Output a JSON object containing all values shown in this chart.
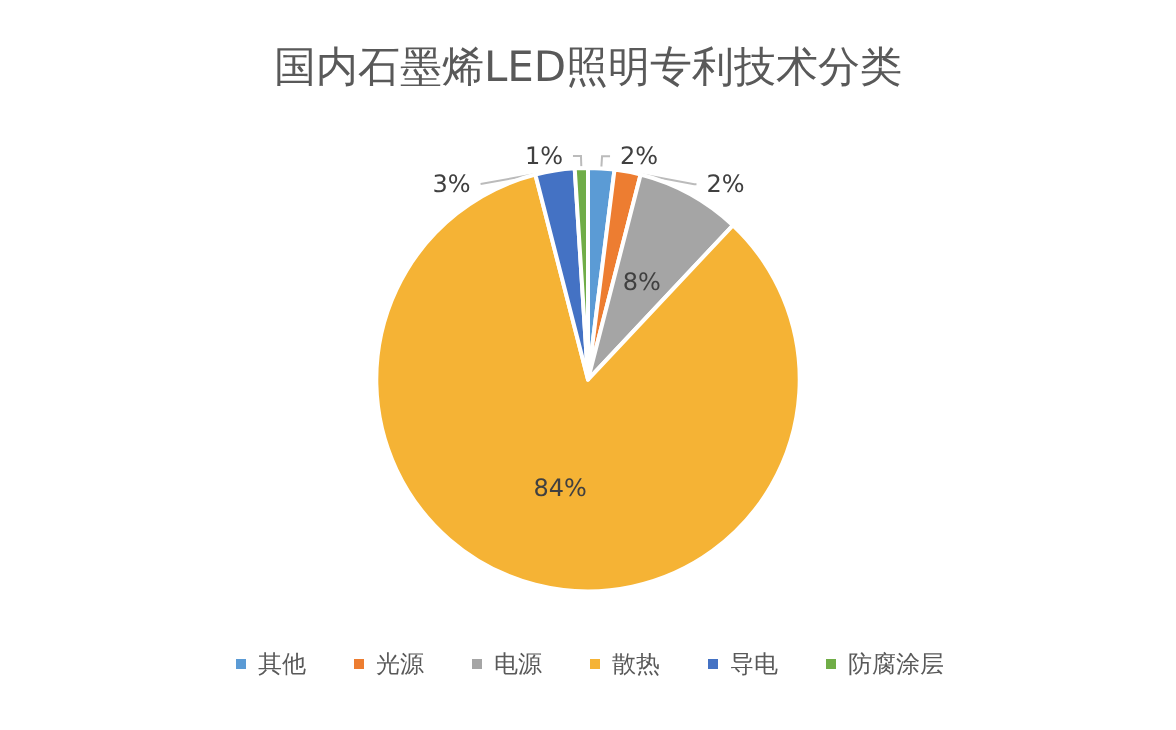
{
  "chart_data": {
    "type": "pie",
    "title": "国内石墨烯LED照明专利技术分类",
    "categories": [
      "其他",
      "光源",
      "电源",
      "散热",
      "导电",
      "防腐涂层"
    ],
    "values": [
      2,
      2,
      8,
      84,
      3,
      1
    ],
    "value_labels": [
      "2%",
      "2%",
      "8%",
      "84%",
      "3%",
      "1%"
    ],
    "colors": [
      "#5b9bd5",
      "#ed7d31",
      "#a5a5a5",
      "#f5b335",
      "#4472c4",
      "#70ad47"
    ],
    "legend": "bottom"
  }
}
